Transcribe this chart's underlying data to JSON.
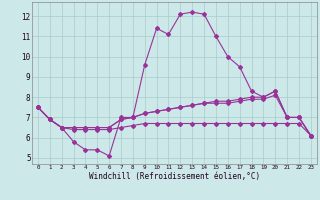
{
  "xlabel": "Windchill (Refroidissement éolien,°C)",
  "bg_color": "#cce8e8",
  "grid_color": "#aacccc",
  "line_color": "#993399",
  "xlim": [
    -0.5,
    23.5
  ],
  "ylim": [
    4.7,
    12.7
  ],
  "xticks": [
    0,
    1,
    2,
    3,
    4,
    5,
    6,
    7,
    8,
    9,
    10,
    11,
    12,
    13,
    14,
    15,
    16,
    17,
    18,
    19,
    20,
    21,
    22,
    23
  ],
  "yticks": [
    5,
    6,
    7,
    8,
    9,
    10,
    11,
    12
  ],
  "line1_x": [
    0,
    1,
    2,
    3,
    4,
    5,
    6,
    7,
    8,
    9,
    10,
    11,
    12,
    13,
    14,
    15,
    16,
    17,
    18,
    19,
    20,
    21,
    22,
    23
  ],
  "line1_y": [
    7.5,
    6.9,
    6.5,
    5.8,
    5.4,
    5.4,
    5.1,
    7.0,
    7.0,
    9.6,
    11.4,
    11.1,
    12.1,
    12.2,
    12.1,
    11.0,
    10.0,
    9.5,
    8.3,
    8.0,
    8.3,
    7.0,
    7.0,
    6.1
  ],
  "line2_x": [
    0,
    1,
    2,
    3,
    4,
    5,
    6,
    7,
    8,
    9,
    10,
    11,
    12,
    13,
    14,
    15,
    16,
    17,
    18,
    19,
    20,
    21,
    22,
    23
  ],
  "line2_y": [
    7.5,
    6.9,
    6.5,
    6.5,
    6.5,
    6.5,
    6.5,
    6.9,
    7.0,
    7.2,
    7.3,
    7.4,
    7.5,
    7.6,
    7.7,
    7.8,
    7.8,
    7.9,
    8.0,
    8.0,
    8.3,
    7.0,
    7.0,
    6.1
  ],
  "line3_x": [
    0,
    1,
    2,
    3,
    4,
    5,
    6,
    7,
    8,
    9,
    10,
    11,
    12,
    13,
    14,
    15,
    16,
    17,
    18,
    19,
    20,
    21,
    22,
    23
  ],
  "line3_y": [
    7.5,
    6.9,
    6.5,
    6.5,
    6.5,
    6.5,
    6.5,
    6.9,
    7.0,
    7.2,
    7.3,
    7.4,
    7.5,
    7.6,
    7.7,
    7.7,
    7.7,
    7.8,
    7.9,
    7.9,
    8.1,
    7.0,
    7.0,
    6.1
  ],
  "line4_x": [
    0,
    1,
    2,
    3,
    4,
    5,
    6,
    7,
    8,
    9,
    10,
    11,
    12,
    13,
    14,
    15,
    16,
    17,
    18,
    19,
    20,
    21,
    22,
    23
  ],
  "line4_y": [
    7.5,
    6.9,
    6.5,
    6.4,
    6.4,
    6.4,
    6.4,
    6.5,
    6.6,
    6.7,
    6.7,
    6.7,
    6.7,
    6.7,
    6.7,
    6.7,
    6.7,
    6.7,
    6.7,
    6.7,
    6.7,
    6.7,
    6.7,
    6.1
  ],
  "xlabel_fontsize": 5.5,
  "tick_fontsize_x": 4.2,
  "tick_fontsize_y": 5.5,
  "marker_size": 2.0,
  "line_width": 0.8
}
